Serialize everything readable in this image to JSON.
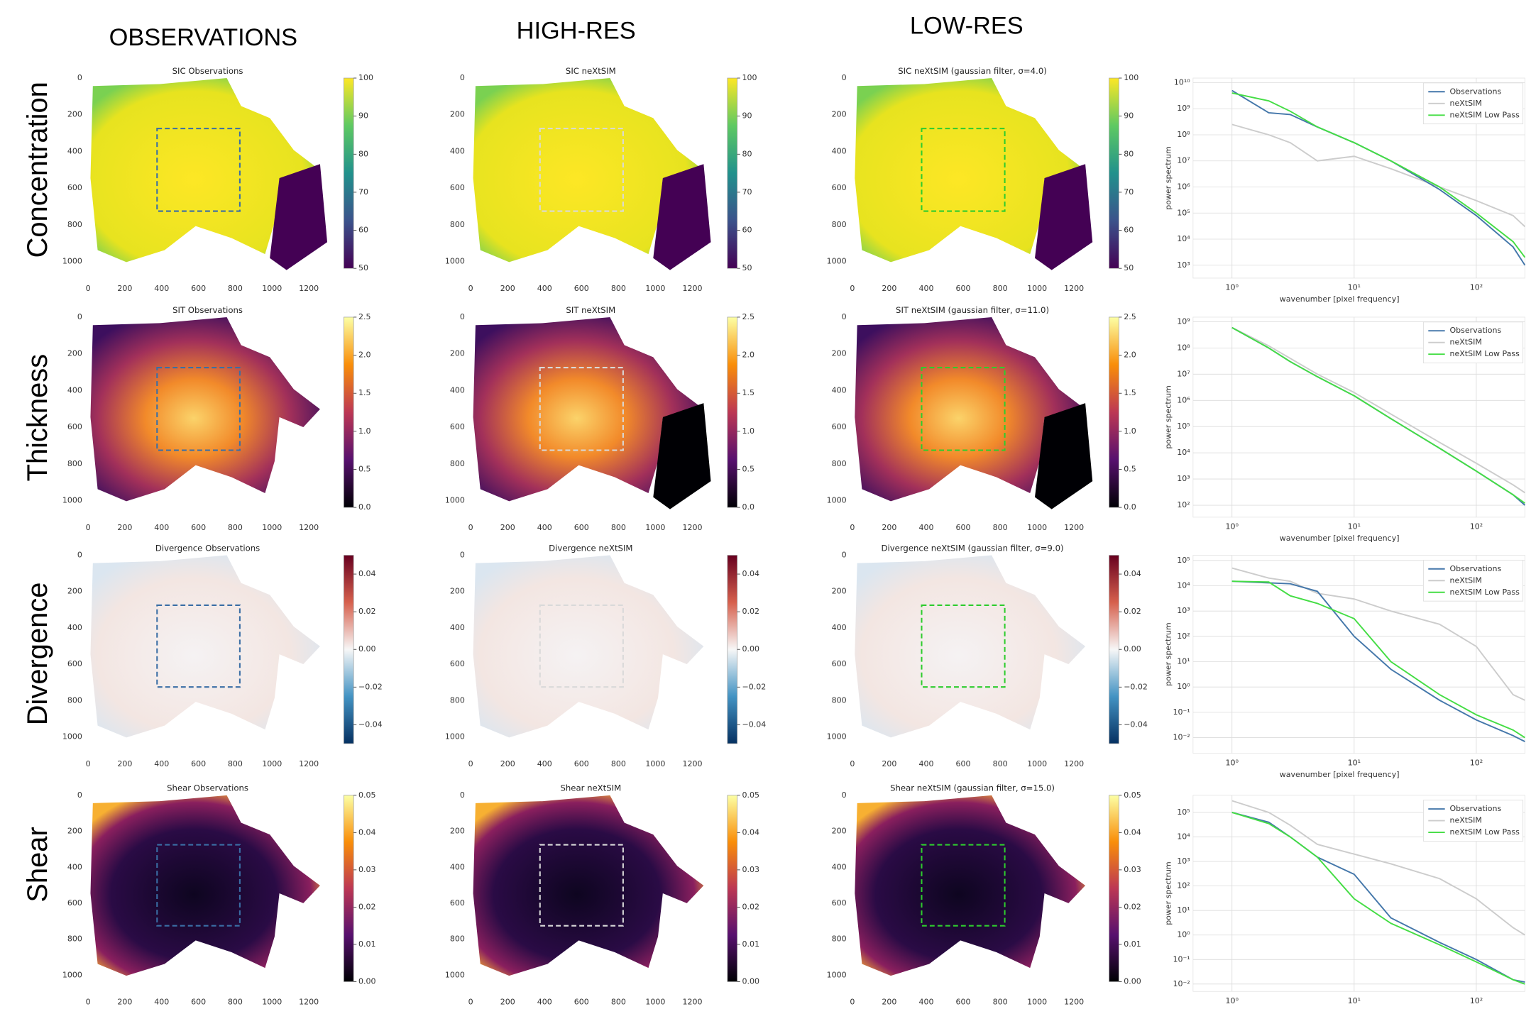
{
  "column_headers": [
    "OBSERVATIONS",
    "HIGH-RES",
    "LOW-RES"
  ],
  "row_labels": [
    "Concentration",
    "Thickness",
    "Divergence",
    "Shear"
  ],
  "chart_data": [
    {
      "type": "heatmap",
      "title": "SIC Observations",
      "xlim": [
        0,
        1300
      ],
      "ylim": [
        1090,
        0
      ],
      "xticks": [
        0,
        200,
        400,
        600,
        800,
        1000,
        1200
      ],
      "yticks": [
        0,
        200,
        400,
        600,
        800,
        1000
      ],
      "box": {
        "x": [
          375,
          825
        ],
        "y": [
          275,
          725
        ],
        "color": "#3a6ea5"
      },
      "colorbar": {
        "colormap": "viridis",
        "lim": [
          50,
          100
        ],
        "ticks": [
          50,
          60,
          70,
          80,
          90,
          100
        ]
      }
    },
    {
      "type": "heatmap",
      "title": "SIC neXtSIM",
      "xlim": [
        0,
        1300
      ],
      "ylim": [
        1090,
        0
      ],
      "xticks": [
        0,
        200,
        400,
        600,
        800,
        1000,
        1200
      ],
      "yticks": [
        0,
        200,
        400,
        600,
        800,
        1000
      ],
      "box": {
        "x": [
          375,
          825
        ],
        "y": [
          275,
          725
        ],
        "color": "#d9d9d9"
      },
      "colorbar": {
        "colormap": "viridis",
        "lim": [
          50,
          100
        ],
        "ticks": [
          50,
          60,
          70,
          80,
          90,
          100
        ]
      }
    },
    {
      "type": "heatmap",
      "title": "SIC neXtSIM (gaussian filter, σ=4.0)",
      "xlim": [
        0,
        1300
      ],
      "ylim": [
        1090,
        0
      ],
      "xticks": [
        0,
        200,
        400,
        600,
        800,
        1000,
        1200
      ],
      "yticks": [
        0,
        200,
        400,
        600,
        800,
        1000
      ],
      "box": {
        "x": [
          375,
          825
        ],
        "y": [
          275,
          725
        ],
        "color": "#2ecc2e"
      },
      "colorbar": {
        "colormap": "viridis",
        "lim": [
          50,
          100
        ],
        "ticks": [
          50,
          60,
          70,
          80,
          90,
          100
        ]
      }
    },
    {
      "type": "line",
      "x": [
        1,
        2,
        3,
        5,
        10,
        20,
        50,
        100,
        200,
        250
      ],
      "xlim": [
        0.48,
        250
      ],
      "ylim": [
        320,
        15000000000
      ],
      "log_x": true,
      "log_y": true,
      "grid": true,
      "legend": "upper right",
      "xlabel": "wavenumber [pixel frequency]",
      "ylabel": "power spectrum",
      "xticks": [
        {
          "value": 1,
          "label": "10⁰"
        },
        {
          "value": 10,
          "label": "10¹"
        },
        {
          "value": 100,
          "label": "10²"
        }
      ],
      "yticks": [
        {
          "value": 1000,
          "label": "10³"
        },
        {
          "value": 10000,
          "label": "10⁴"
        },
        {
          "value": 100000,
          "label": "10⁵"
        },
        {
          "value": 1000000,
          "label": "10⁶"
        },
        {
          "value": 10000000,
          "label": "10⁷"
        },
        {
          "value": 100000000,
          "label": "10⁸"
        },
        {
          "value": 1000000000,
          "label": "10⁹"
        },
        {
          "value": 10000000000,
          "label": "10¹⁰"
        }
      ],
      "series": [
        {
          "name": "Observations",
          "color": "#4477aa",
          "values": [
            5000000000,
            700000000,
            600000000,
            200000000,
            50000000,
            10000000,
            800000,
            80000,
            5000,
            1000
          ]
        },
        {
          "name": "neXtSIM",
          "color": "#cccccc",
          "values": [
            250000000,
            100000000,
            50000000,
            10000000,
            15000000,
            5000000,
            1000000,
            300000,
            80000,
            30000
          ]
        },
        {
          "name": "neXtSIM Low Pass",
          "color": "#44dd44",
          "values": [
            4000000000,
            2000000000,
            800000000,
            200000000,
            50000000,
            10000000,
            1000000,
            100000,
            8000,
            2000
          ]
        }
      ]
    },
    {
      "type": "heatmap",
      "title": "SIT Observations",
      "xlim": [
        0,
        1300
      ],
      "ylim": [
        1090,
        0
      ],
      "xticks": [
        0,
        200,
        400,
        600,
        800,
        1000,
        1200
      ],
      "yticks": [
        0,
        200,
        400,
        600,
        800,
        1000
      ],
      "box": {
        "x": [
          375,
          825
        ],
        "y": [
          275,
          725
        ],
        "color": "#3a6ea5"
      },
      "colorbar": {
        "colormap": "inferno",
        "lim": [
          0,
          2.5
        ],
        "ticks": [
          {
            "value": 0,
            "label": "0.0"
          },
          0.5,
          {
            "value": 1,
            "label": "1.0"
          },
          1.5,
          {
            "value": 2,
            "label": "2.0"
          },
          2.5
        ]
      }
    },
    {
      "type": "heatmap",
      "title": "SIT neXtSIM",
      "xlim": [
        0,
        1300
      ],
      "ylim": [
        1090,
        0
      ],
      "xticks": [
        0,
        200,
        400,
        600,
        800,
        1000,
        1200
      ],
      "yticks": [
        0,
        200,
        400,
        600,
        800,
        1000
      ],
      "box": {
        "x": [
          375,
          825
        ],
        "y": [
          275,
          725
        ],
        "color": "#d9d9d9"
      },
      "colorbar": {
        "colormap": "inferno",
        "lim": [
          0,
          2.5
        ],
        "ticks": [
          {
            "value": 0,
            "label": "0.0"
          },
          0.5,
          {
            "value": 1,
            "label": "1.0"
          },
          1.5,
          {
            "value": 2,
            "label": "2.0"
          },
          2.5
        ]
      }
    },
    {
      "type": "heatmap",
      "title": "SIT neXtSIM (gaussian filter, σ=11.0)",
      "xlim": [
        0,
        1300
      ],
      "ylim": [
        1090,
        0
      ],
      "xticks": [
        0,
        200,
        400,
        600,
        800,
        1000,
        1200
      ],
      "yticks": [
        0,
        200,
        400,
        600,
        800,
        1000
      ],
      "box": {
        "x": [
          375,
          825
        ],
        "y": [
          275,
          725
        ],
        "color": "#2ecc2e"
      },
      "colorbar": {
        "colormap": "inferno",
        "lim": [
          0,
          2.5
        ],
        "ticks": [
          {
            "value": 0,
            "label": "0.0"
          },
          0.5,
          {
            "value": 1,
            "label": "1.0"
          },
          1.5,
          {
            "value": 2,
            "label": "2.0"
          },
          2.5
        ]
      }
    },
    {
      "type": "line",
      "x": [
        1,
        2,
        3,
        5,
        10,
        20,
        50,
        100,
        200,
        250
      ],
      "xlim": [
        0.48,
        250
      ],
      "ylim": [
        35,
        1500000000
      ],
      "log_x": true,
      "log_y": true,
      "grid": true,
      "legend": "upper right",
      "xlabel": "wavenumber [pixel frequency]",
      "ylabel": "power spectrum",
      "xticks": [
        {
          "value": 1,
          "label": "10⁰"
        },
        {
          "value": 10,
          "label": "10¹"
        },
        {
          "value": 100,
          "label": "10²"
        }
      ],
      "yticks": [
        {
          "value": 100,
          "label": "10²"
        },
        {
          "value": 1000,
          "label": "10³"
        },
        {
          "value": 10000,
          "label": "10⁴"
        },
        {
          "value": 100000,
          "label": "10⁵"
        },
        {
          "value": 1000000,
          "label": "10⁶"
        },
        {
          "value": 10000000,
          "label": "10⁷"
        },
        {
          "value": 100000000,
          "label": "10⁸"
        },
        {
          "value": 1000000000,
          "label": "10⁹"
        }
      ],
      "series": [
        {
          "name": "Observations",
          "color": "#4477aa",
          "values": [
            600000000,
            100000000,
            30000000,
            8000000,
            1500000,
            200000,
            15000,
            2000,
            250,
            100
          ]
        },
        {
          "name": "neXtSIM",
          "color": "#cccccc",
          "values": [
            600000000,
            120000000,
            40000000,
            10000000,
            2000000,
            300000,
            25000,
            4000,
            600,
            300
          ]
        },
        {
          "name": "neXtSIM Low Pass",
          "color": "#44dd44",
          "values": [
            600000000,
            100000000,
            30000000,
            8000000,
            1500000,
            200000,
            15000,
            2000,
            250,
            120
          ]
        }
      ]
    },
    {
      "type": "heatmap",
      "title": "Divergence Observations",
      "xlim": [
        0,
        1300
      ],
      "ylim": [
        1090,
        0
      ],
      "xticks": [
        0,
        200,
        400,
        600,
        800,
        1000,
        1200
      ],
      "yticks": [
        0,
        200,
        400,
        600,
        800,
        1000
      ],
      "box": {
        "x": [
          375,
          825
        ],
        "y": [
          275,
          725
        ],
        "color": "#3a6ea5"
      },
      "colorbar": {
        "colormap": "RdBu_r",
        "lim": [
          -0.05,
          0.05
        ],
        "ticks": [
          {
            "value": -0.04,
            "label": "−0.04"
          },
          {
            "value": -0.02,
            "label": "−0.02"
          },
          {
            "value": 0,
            "label": "0.00"
          },
          0.02,
          0.04
        ]
      }
    },
    {
      "type": "heatmap",
      "title": "Divergence neXtSIM",
      "xlim": [
        0,
        1300
      ],
      "ylim": [
        1090,
        0
      ],
      "xticks": [
        0,
        200,
        400,
        600,
        800,
        1000,
        1200
      ],
      "yticks": [
        0,
        200,
        400,
        600,
        800,
        1000
      ],
      "box": {
        "x": [
          375,
          825
        ],
        "y": [
          275,
          725
        ],
        "color": "#d9d9d9"
      },
      "colorbar": {
        "colormap": "RdBu_r",
        "lim": [
          -0.05,
          0.05
        ],
        "ticks": [
          {
            "value": -0.04,
            "label": "−0.04"
          },
          {
            "value": -0.02,
            "label": "−0.02"
          },
          {
            "value": 0,
            "label": "0.00"
          },
          0.02,
          0.04
        ]
      }
    },
    {
      "type": "heatmap",
      "title": "Divergence neXtSIM (gaussian filter, σ=9.0)",
      "xlim": [
        0,
        1300
      ],
      "ylim": [
        1090,
        0
      ],
      "xticks": [
        0,
        200,
        400,
        600,
        800,
        1000,
        1200
      ],
      "yticks": [
        0,
        200,
        400,
        600,
        800,
        1000
      ],
      "box": {
        "x": [
          375,
          825
        ],
        "y": [
          275,
          725
        ],
        "color": "#2ecc2e"
      },
      "colorbar": {
        "colormap": "RdBu_r",
        "lim": [
          -0.05,
          0.05
        ],
        "ticks": [
          {
            "value": -0.04,
            "label": "−0.04"
          },
          {
            "value": -0.02,
            "label": "−0.02"
          },
          {
            "value": 0,
            "label": "0.00"
          },
          0.02,
          0.04
        ]
      }
    },
    {
      "type": "line",
      "x": [
        1,
        2,
        3,
        5,
        10,
        20,
        50,
        100,
        200,
        250
      ],
      "xlim": [
        0.48,
        250
      ],
      "ylim": [
        0.0024,
        160000
      ],
      "log_x": true,
      "log_y": true,
      "grid": true,
      "legend": "upper right",
      "xlabel": "wavenumber [pixel frequency]",
      "ylabel": "power spectrum",
      "xticks": [
        {
          "value": 1,
          "label": "10⁰"
        },
        {
          "value": 10,
          "label": "10¹"
        },
        {
          "value": 100,
          "label": "10²"
        }
      ],
      "yticks": [
        {
          "value": 0.01,
          "label": "10⁻²"
        },
        {
          "value": 0.1,
          "label": "10⁻¹"
        },
        {
          "value": 1,
          "label": "10⁰"
        },
        {
          "value": 10,
          "label": "10¹"
        },
        {
          "value": 100,
          "label": "10²"
        },
        {
          "value": 1000,
          "label": "10³"
        },
        {
          "value": 10000,
          "label": "10⁴"
        },
        {
          "value": 100000,
          "label": "10⁵"
        }
      ],
      "series": [
        {
          "name": "Observations",
          "color": "#4477aa",
          "values": [
            15000,
            13000,
            12000,
            6000,
            100,
            5,
            0.3,
            0.05,
            0.012,
            0.007
          ]
        },
        {
          "name": "neXtSIM",
          "color": "#cccccc",
          "values": [
            50000,
            20000,
            15000,
            5000,
            3000,
            1000,
            300,
            40,
            0.5,
            0.3
          ]
        },
        {
          "name": "neXtSIM Low Pass",
          "color": "#44dd44",
          "values": [
            15000,
            14000,
            4000,
            2000,
            500,
            10,
            0.5,
            0.08,
            0.02,
            0.01
          ]
        }
      ]
    },
    {
      "type": "heatmap",
      "title": "Shear Observations",
      "xlim": [
        0,
        1300
      ],
      "ylim": [
        1090,
        0
      ],
      "xticks": [
        0,
        200,
        400,
        600,
        800,
        1000,
        1200
      ],
      "yticks": [
        0,
        200,
        400,
        600,
        800,
        1000
      ],
      "box": {
        "x": [
          375,
          825
        ],
        "y": [
          275,
          725
        ],
        "color": "#3a6ea5"
      },
      "colorbar": {
        "colormap": "inferno",
        "lim": [
          0,
          0.05
        ],
        "ticks": [
          {
            "value": 0,
            "label": "0.00"
          },
          0.01,
          0.02,
          0.03,
          0.04,
          0.05
        ]
      }
    },
    {
      "type": "heatmap",
      "title": "Shear neXtSIM",
      "xlim": [
        0,
        1300
      ],
      "ylim": [
        1090,
        0
      ],
      "xticks": [
        0,
        200,
        400,
        600,
        800,
        1000,
        1200
      ],
      "yticks": [
        0,
        200,
        400,
        600,
        800,
        1000
      ],
      "box": {
        "x": [
          375,
          825
        ],
        "y": [
          275,
          725
        ],
        "color": "#d9d9d9"
      },
      "colorbar": {
        "colormap": "inferno",
        "lim": [
          0,
          0.05
        ],
        "ticks": [
          {
            "value": 0,
            "label": "0.00"
          },
          0.01,
          0.02,
          0.03,
          0.04,
          0.05
        ]
      }
    },
    {
      "type": "heatmap",
      "title": "Shear neXtSIM (gaussian filter, σ=15.0)",
      "xlim": [
        0,
        1300
      ],
      "ylim": [
        1090,
        0
      ],
      "xticks": [
        0,
        200,
        400,
        600,
        800,
        1000,
        1200
      ],
      "yticks": [
        0,
        200,
        400,
        600,
        800,
        1000
      ],
      "box": {
        "x": [
          375,
          825
        ],
        "y": [
          275,
          725
        ],
        "color": "#2ecc2e"
      },
      "colorbar": {
        "colormap": "inferno",
        "lim": [
          0,
          0.05
        ],
        "ticks": [
          {
            "value": 0,
            "label": "0.00"
          },
          0.01,
          0.02,
          0.03,
          0.04,
          0.05
        ]
      }
    },
    {
      "type": "line",
      "x": [
        1,
        2,
        3,
        5,
        10,
        20,
        50,
        100,
        200,
        250
      ],
      "xlim": [
        0.48,
        250
      ],
      "ylim": [
        0.005,
        500000
      ],
      "log_x": true,
      "log_y": true,
      "grid": true,
      "legend": "upper right",
      "ylabel": "power spectrum",
      "xticks": [
        {
          "value": 1,
          "label": "10⁰"
        },
        {
          "value": 10,
          "label": "10¹"
        },
        {
          "value": 100,
          "label": "10²"
        }
      ],
      "yticks": [
        {
          "value": 0.01,
          "label": "10⁻²"
        },
        {
          "value": 0.1,
          "label": "10⁻¹"
        },
        {
          "value": 1,
          "label": "10⁰"
        },
        {
          "value": 10,
          "label": "10¹"
        },
        {
          "value": 100,
          "label": "10²"
        },
        {
          "value": 1000,
          "label": "10³"
        },
        {
          "value": 10000,
          "label": "10⁴"
        },
        {
          "value": 100000,
          "label": "10⁵"
        }
      ],
      "series": [
        {
          "name": "Observations",
          "color": "#4477aa",
          "values": [
            100000,
            40000,
            10000,
            1500,
            300,
            5,
            0.5,
            0.1,
            0.015,
            0.012
          ]
        },
        {
          "name": "neXtSIM",
          "color": "#cccccc",
          "values": [
            300000,
            100000,
            30000,
            5000,
            2000,
            800,
            200,
            30,
            2,
            1
          ]
        },
        {
          "name": "neXtSIM Low Pass",
          "color": "#44dd44",
          "values": [
            100000,
            35000,
            10000,
            1500,
            30,
            3,
            0.4,
            0.08,
            0.015,
            0.01
          ]
        }
      ]
    }
  ]
}
